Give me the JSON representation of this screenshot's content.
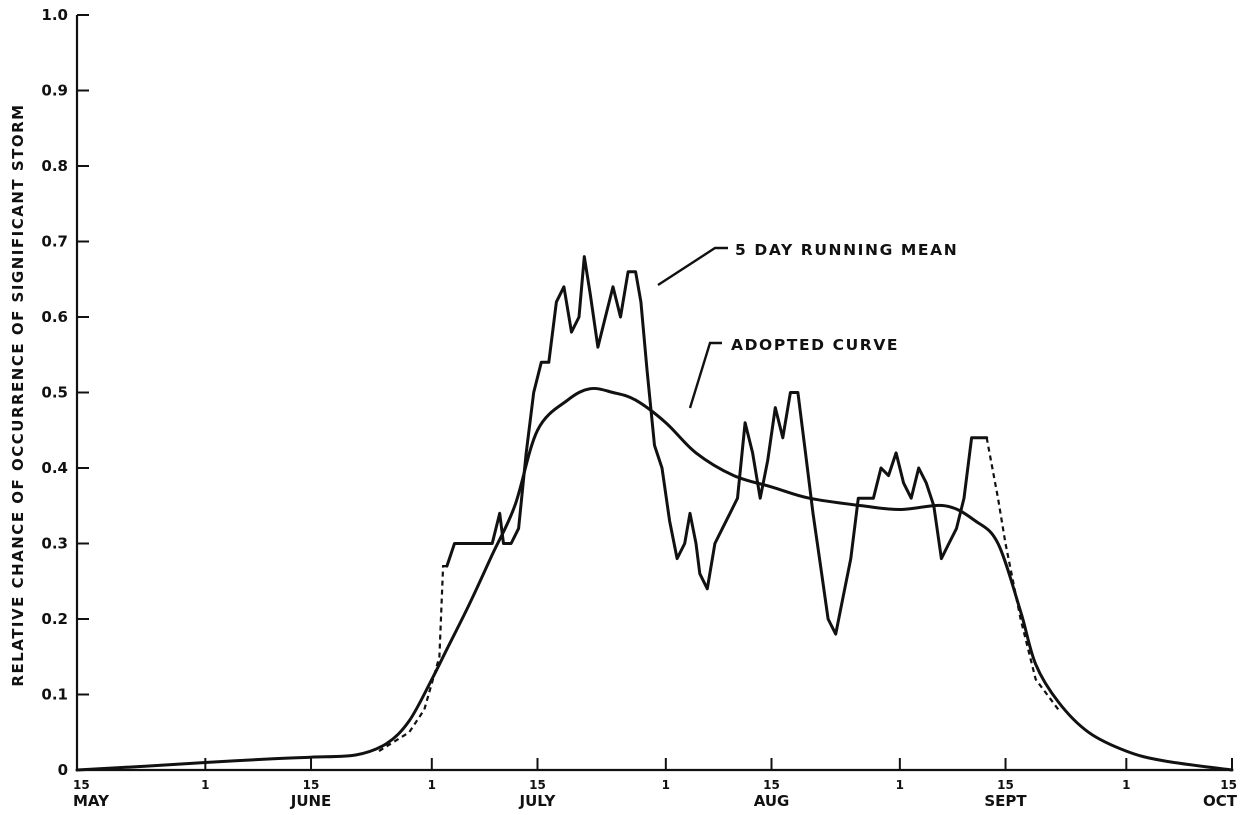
{
  "chart_data": {
    "type": "line",
    "title": "",
    "ylabel": "RELATIVE CHANCE OF OCCURRENCE OF SIGNIFICANT STORM",
    "xlabel": "",
    "ylim": [
      0,
      1.0
    ],
    "xlim": [
      "May 15",
      "Oct 15"
    ],
    "grid": false,
    "y_ticks": [
      "0",
      "0.1",
      "0.2",
      "0.3",
      "0.4",
      "0.5",
      "0.6",
      "0.7",
      "0.8",
      "0.9",
      "1.0"
    ],
    "x_ticks": [
      {
        "x": "May 15",
        "day": "15",
        "month": "MAY"
      },
      {
        "x": "Jun 1",
        "day": "1",
        "month": ""
      },
      {
        "x": "Jun 15",
        "day": "15",
        "month": "JUNE"
      },
      {
        "x": "Jul 1",
        "day": "1",
        "month": ""
      },
      {
        "x": "Jul 15",
        "day": "15",
        "month": "JULY"
      },
      {
        "x": "Aug 1",
        "day": "1",
        "month": ""
      },
      {
        "x": "Aug 15",
        "day": "15",
        "month": "AUG"
      },
      {
        "x": "Sep 1",
        "day": "1",
        "month": ""
      },
      {
        "x": "Sep 15",
        "day": "15",
        "month": "SEPT"
      },
      {
        "x": "Oct 1",
        "day": "1",
        "month": ""
      },
      {
        "x": "Oct 15",
        "day": "15",
        "month": "OCT"
      }
    ],
    "series": [
      {
        "name": "5 DAY RUNNING MEAN",
        "style": "solid-jagged",
        "points": [
          [
            "Jul 3",
            0.27
          ],
          [
            "Jul 4",
            0.3
          ],
          [
            "Jul 6",
            0.3
          ],
          [
            "Jul 8",
            0.3
          ],
          [
            "Jul 9",
            0.3
          ],
          [
            "Jul 10",
            0.34
          ],
          [
            "Jul 10.5",
            0.3
          ],
          [
            "Jul 11.5",
            0.3
          ],
          [
            "Jul 12.5",
            0.32
          ],
          [
            "Jul 13.5",
            0.42
          ],
          [
            "Jul 14.5",
            0.5
          ],
          [
            "Jul 15.5",
            0.54
          ],
          [
            "Jul 16.5",
            0.54
          ],
          [
            "Jul 17.5",
            0.62
          ],
          [
            "Jul 18.5",
            0.64
          ],
          [
            "Jul 19.5",
            0.58
          ],
          [
            "Jul 20.5",
            0.6
          ],
          [
            "Jul 21.2",
            0.68
          ],
          [
            "Jul 22",
            0.63
          ],
          [
            "Jul 23",
            0.56
          ],
          [
            "Jul 24",
            0.6
          ],
          [
            "Jul 25",
            0.64
          ],
          [
            "Jul 26",
            0.6
          ],
          [
            "Jul 27",
            0.66
          ],
          [
            "Jul 28",
            0.66
          ],
          [
            "Jul 28.7",
            0.62
          ],
          [
            "Jul 29.5",
            0.53
          ],
          [
            "Jul 30.5",
            0.43
          ],
          [
            "Jul 31.5",
            0.4
          ],
          [
            "Aug 1.5",
            0.33
          ],
          [
            "Aug 2.5",
            0.28
          ],
          [
            "Aug 3.5",
            0.3
          ],
          [
            "Aug 4.2",
            0.34
          ],
          [
            "Aug 5",
            0.3
          ],
          [
            "Aug 5.5",
            0.26
          ],
          [
            "Aug 6.5",
            0.24
          ],
          [
            "Aug 7.5",
            0.3
          ],
          [
            "Aug 8.5",
            0.32
          ],
          [
            "Aug 9.5",
            0.34
          ],
          [
            "Aug 10.5",
            0.36
          ],
          [
            "Aug 11.5",
            0.46
          ],
          [
            "Aug 12.5",
            0.42
          ],
          [
            "Aug 13.5",
            0.36
          ],
          [
            "Aug 14.5",
            0.41
          ],
          [
            "Aug 15.5",
            0.48
          ],
          [
            "Aug 16.5",
            0.44
          ],
          [
            "Aug 17.5",
            0.5
          ],
          [
            "Aug 18.5",
            0.5
          ],
          [
            "Aug 19.5",
            0.42
          ],
          [
            "Aug 20.5",
            0.34
          ],
          [
            "Aug 21.5",
            0.27
          ],
          [
            "Aug 22.5",
            0.2
          ],
          [
            "Aug 23.5",
            0.18
          ],
          [
            "Aug 24.5",
            0.23
          ],
          [
            "Aug 25.5",
            0.28
          ],
          [
            "Aug 26.5",
            0.36
          ],
          [
            "Aug 27.5",
            0.36
          ],
          [
            "Aug 28.5",
            0.36
          ],
          [
            "Aug 29.5",
            0.4
          ],
          [
            "Aug 30.5",
            0.39
          ],
          [
            "Aug 31.5",
            0.42
          ],
          [
            "Sep 1.5",
            0.38
          ],
          [
            "Sep 2.5",
            0.36
          ],
          [
            "Sep 3.5",
            0.4
          ],
          [
            "Sep 4.5",
            0.38
          ],
          [
            "Sep 5.5",
            0.35
          ],
          [
            "Sep 6.5",
            0.28
          ],
          [
            "Sep 7.5",
            0.3
          ],
          [
            "Sep 8.5",
            0.32
          ],
          [
            "Sep 9.5",
            0.36
          ],
          [
            "Sep 10.5",
            0.44
          ],
          [
            "Sep 11.5",
            0.44
          ],
          [
            "Sep 12.5",
            0.44
          ]
        ]
      },
      {
        "name": "ADOPTED CURVE",
        "style": "solid-smooth",
        "points": [
          [
            "May 15",
            0.0
          ],
          [
            "May 24",
            0.005
          ],
          [
            "Jun 1",
            0.01
          ],
          [
            "Jun 10",
            0.015
          ],
          [
            "Jun 15",
            0.017
          ],
          [
            "Jun 21",
            0.02
          ],
          [
            "Jun 25",
            0.035
          ],
          [
            "Jun 28",
            0.065
          ],
          [
            "Jul 1",
            0.12
          ],
          [
            "Jul 3",
            0.16
          ],
          [
            "Jul 6",
            0.22
          ],
          [
            "Jul 9",
            0.285
          ],
          [
            "Jul 12",
            0.35
          ],
          [
            "Jul 15",
            0.45
          ],
          [
            "Jul 19",
            0.49
          ],
          [
            "Jul 22",
            0.505
          ],
          [
            "Jul 25",
            0.5
          ],
          [
            "Jul 28",
            0.49
          ],
          [
            "Aug 1",
            0.46
          ],
          [
            "Aug 5",
            0.42
          ],
          [
            "Aug 10",
            0.39
          ],
          [
            "Aug 15",
            0.375
          ],
          [
            "Aug 20",
            0.36
          ],
          [
            "Aug 27",
            0.35
          ],
          [
            "Sep 1",
            0.345
          ],
          [
            "Sep 7",
            0.35
          ],
          [
            "Sep 11",
            0.33
          ],
          [
            "Sep 14",
            0.3
          ],
          [
            "Sep 17",
            0.21
          ],
          [
            "Sep 19",
            0.14
          ],
          [
            "Sep 22",
            0.09
          ],
          [
            "Sep 26",
            0.05
          ],
          [
            "Oct 1",
            0.025
          ],
          [
            "Oct 6",
            0.012
          ],
          [
            "Oct 15",
            0.0
          ]
        ]
      },
      {
        "name": "",
        "style": "dashed",
        "points": [
          [
            "Jun 24",
            0.025
          ],
          [
            "Jun 28",
            0.05
          ],
          [
            "Jun 30",
            0.08
          ],
          [
            "Jul 2",
            0.15
          ],
          [
            "Jul 2.5",
            0.27
          ],
          [
            "Jul 3",
            0.27
          ]
        ]
      },
      {
        "name": "",
        "style": "dashed",
        "points": [
          [
            "Sep 12.5",
            0.44
          ],
          [
            "Sep 14",
            0.36
          ],
          [
            "Sep 15",
            0.3
          ],
          [
            "Sep 17",
            0.2
          ],
          [
            "Sep 19",
            0.12
          ],
          [
            "Sep 22",
            0.08
          ]
        ]
      }
    ],
    "annotations": [
      {
        "text": "5 DAY RUNNING MEAN",
        "points_to": "5 DAY RUNNING MEAN"
      },
      {
        "text": "ADOPTED CURVE",
        "points_to": "ADOPTED CURVE"
      }
    ]
  }
}
